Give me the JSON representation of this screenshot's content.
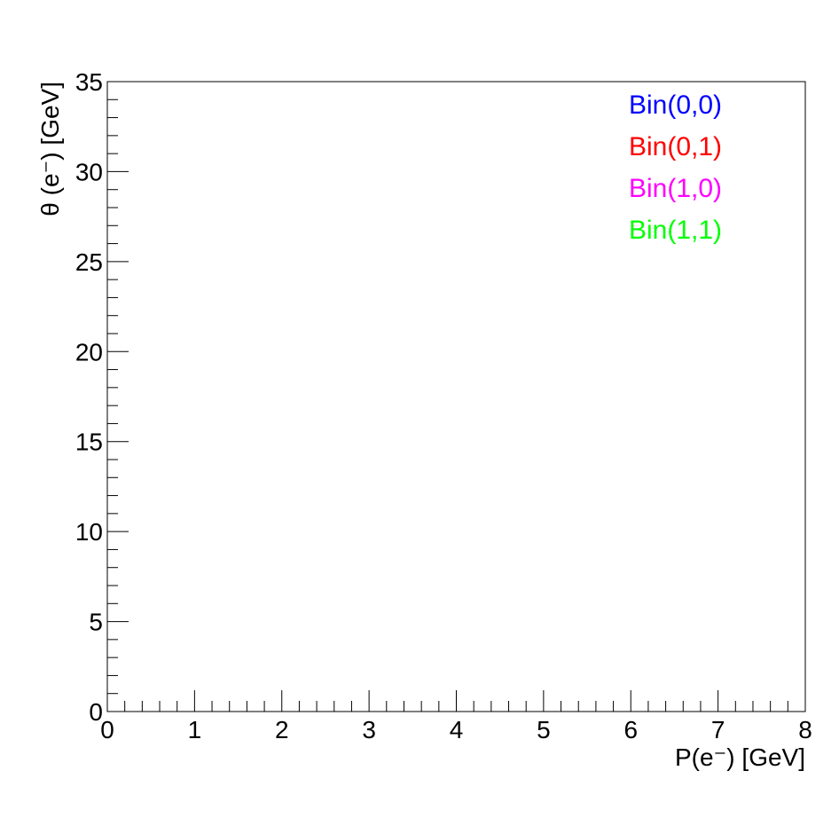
{
  "chart_data": {
    "type": "scatter",
    "title": "",
    "xlabel": "P(e⁻) [GeV]",
    "ylabel": "θ (e⁻) [GeV]",
    "xlim": [
      0,
      8
    ],
    "ylim": [
      0,
      35
    ],
    "x_major_ticks": [
      0,
      1,
      2,
      3,
      4,
      5,
      6,
      7,
      8
    ],
    "x_tick_labels": [
      "0",
      "1",
      "2",
      "3",
      "4",
      "5",
      "6",
      "7",
      "8"
    ],
    "y_major_ticks": [
      0,
      5,
      10,
      15,
      20,
      25,
      30,
      35
    ],
    "y_tick_labels": [
      "0",
      "5",
      "10",
      "15",
      "20",
      "25",
      "30",
      "35"
    ],
    "x_minor_step": 0.2,
    "y_minor_step": 1,
    "grid": false,
    "legend_position": "top-right",
    "series": [
      {
        "name": "Bin(0,0)",
        "color": "#0000ff",
        "points": []
      },
      {
        "name": "Bin(0,1)",
        "color": "#ff0000",
        "points": []
      },
      {
        "name": "Bin(1,0)",
        "color": "#ff00ff",
        "points": []
      },
      {
        "name": "Bin(1,1)",
        "color": "#00ff00",
        "points": []
      }
    ]
  }
}
